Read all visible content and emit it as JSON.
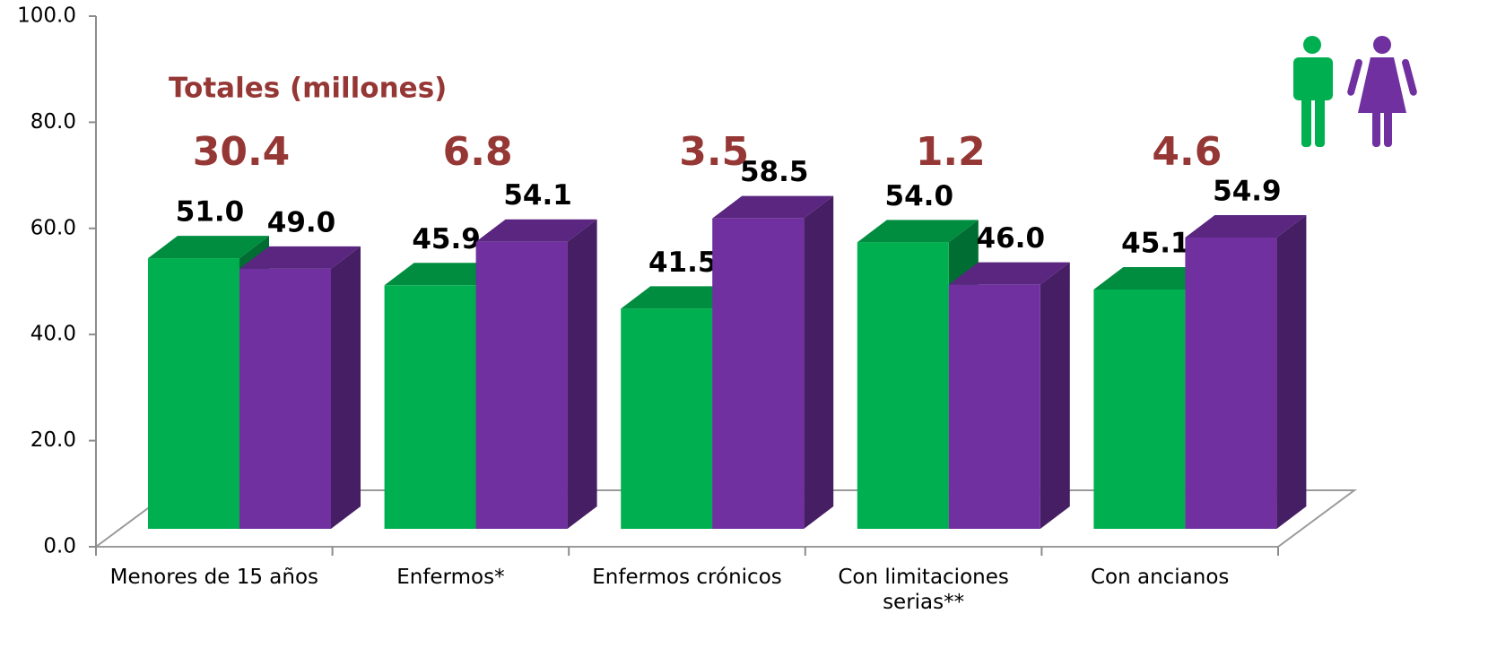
{
  "chart_data": {
    "type": "bar3d",
    "categories": [
      "Menores de 15 años",
      "Enfermos*",
      "Enfermos crónicos",
      "Con limitaciones serias**",
      "Con ancianos"
    ],
    "series": [
      {
        "color": "#00b050",
        "values": [
          51.0,
          45.9,
          41.5,
          54.0,
          45.1
        ],
        "value_labels": [
          "51.0",
          "45.9",
          "41.5",
          "54.0",
          "45.1"
        ]
      },
      {
        "color": "#7030a0",
        "values": [
          49.0,
          54.1,
          58.5,
          46.0,
          54.9
        ],
        "value_labels": [
          "49.0",
          "54.1",
          "58.5",
          "46.0",
          "54.9"
        ]
      }
    ],
    "totals": {
      "title": "Totales (millones)",
      "color": "#953735",
      "values": [
        30.4,
        6.8,
        3.5,
        1.2,
        4.6
      ]
    },
    "ylim": [
      0,
      100
    ],
    "yticks": [
      {
        "value": 0,
        "label": "0.0"
      },
      {
        "value": 20,
        "label": "20.0"
      },
      {
        "value": 40,
        "label": "40.0"
      },
      {
        "value": 60,
        "label": "60.0"
      },
      {
        "value": 80,
        "label": "80.0"
      },
      {
        "value": 100,
        "label": "100.0"
      }
    ]
  }
}
